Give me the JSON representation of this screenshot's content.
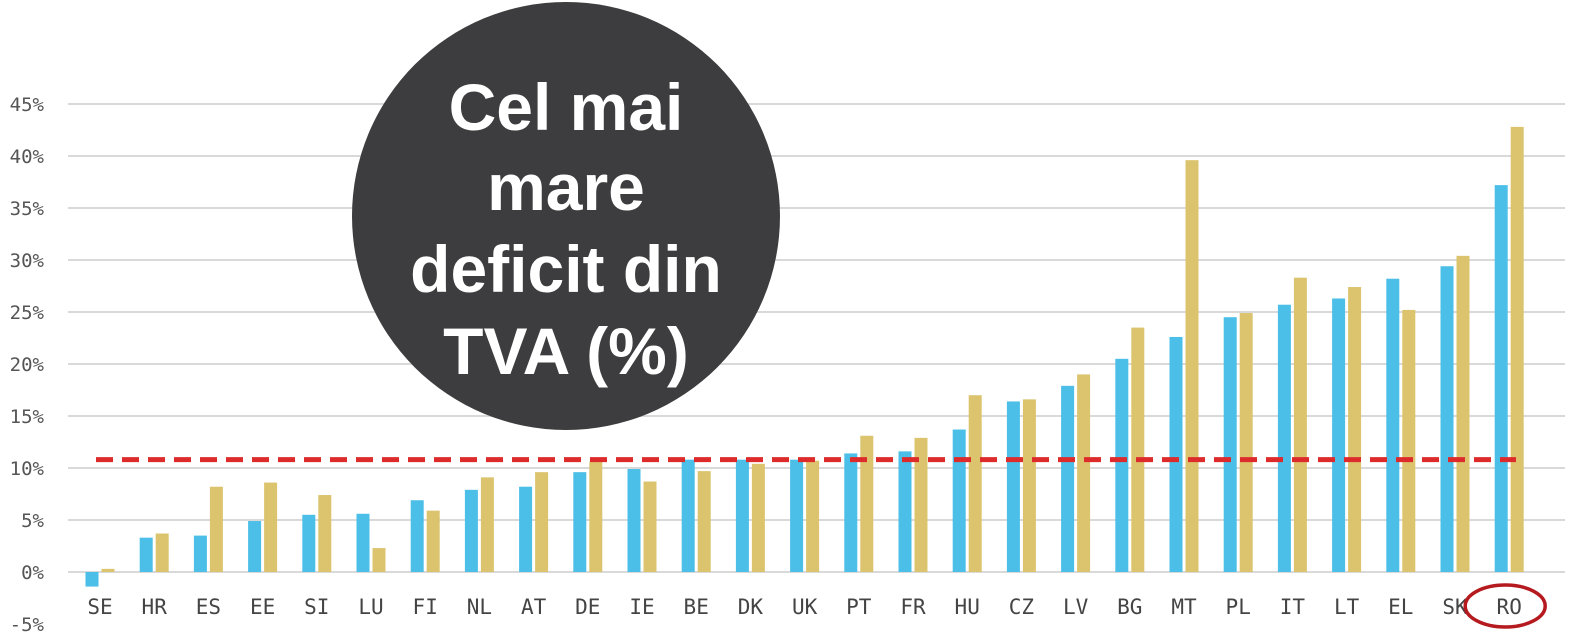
{
  "chart_data": {
    "type": "bar",
    "title": "",
    "xlabel": "",
    "ylabel": "",
    "ylim": [
      -5,
      45
    ],
    "y_ticks": [
      -5,
      0,
      5,
      10,
      15,
      20,
      25,
      30,
      35,
      40,
      45
    ],
    "y_tick_suffix": "%",
    "grid": true,
    "legend": "none",
    "categories": [
      "SE",
      "HR",
      "ES",
      "EE",
      "SI",
      "LU",
      "FI",
      "NL",
      "AT",
      "DE",
      "IE",
      "BE",
      "DK",
      "UK",
      "PT",
      "FR",
      "HU",
      "CZ",
      "LV",
      "BG",
      "MT",
      "PL",
      "IT",
      "LT",
      "EL",
      "SK",
      "RO"
    ],
    "series": [
      {
        "color": "#4bbfe7",
        "values": [
          -1.4,
          3.3,
          3.5,
          4.9,
          5.5,
          5.6,
          6.9,
          7.9,
          8.2,
          9.6,
          9.9,
          10.8,
          10.8,
          10.8,
          11.4,
          11.6,
          13.7,
          16.4,
          17.9,
          20.5,
          22.6,
          24.5,
          25.7,
          26.3,
          28.2,
          29.4,
          37.2
        ]
      },
      {
        "color": "#dcc46e",
        "values": [
          0.3,
          3.7,
          8.2,
          8.6,
          7.4,
          2.3,
          5.9,
          9.1,
          9.6,
          10.6,
          8.7,
          9.7,
          10.4,
          10.7,
          13.1,
          12.9,
          17.0,
          16.6,
          19.0,
          23.5,
          39.6,
          24.9,
          28.3,
          27.4,
          25.2,
          30.4,
          42.8
        ]
      }
    ],
    "reference_line": {
      "value": 10.8,
      "color": "#dd2a2a",
      "style": "dashed"
    },
    "highlight": {
      "category": "RO",
      "color": "#b51a1f",
      "shape": "ellipse"
    },
    "badge": {
      "lines": [
        "Cel mai",
        "mare",
        "deficit din",
        "TVA (%)"
      ],
      "color": "#3d3d3f",
      "text_color": "#ffffff"
    }
  }
}
